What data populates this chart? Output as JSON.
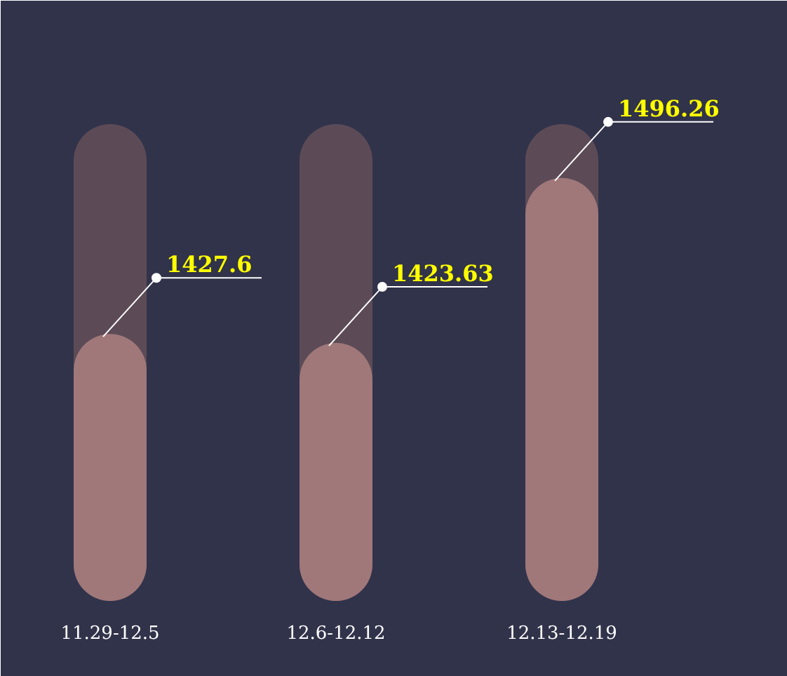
{
  "chart_data": {
    "type": "bar",
    "categories": [
      "11.29-12.5",
      "12.6-12.12",
      "12.13-12.19"
    ],
    "values": [
      1427.6,
      1423.63,
      1496.26
    ],
    "color": "#a0787a",
    "ylim": [
      1310,
      1520
    ],
    "grid": false,
    "tick_labels": "x",
    "data_labels": true
  }
}
